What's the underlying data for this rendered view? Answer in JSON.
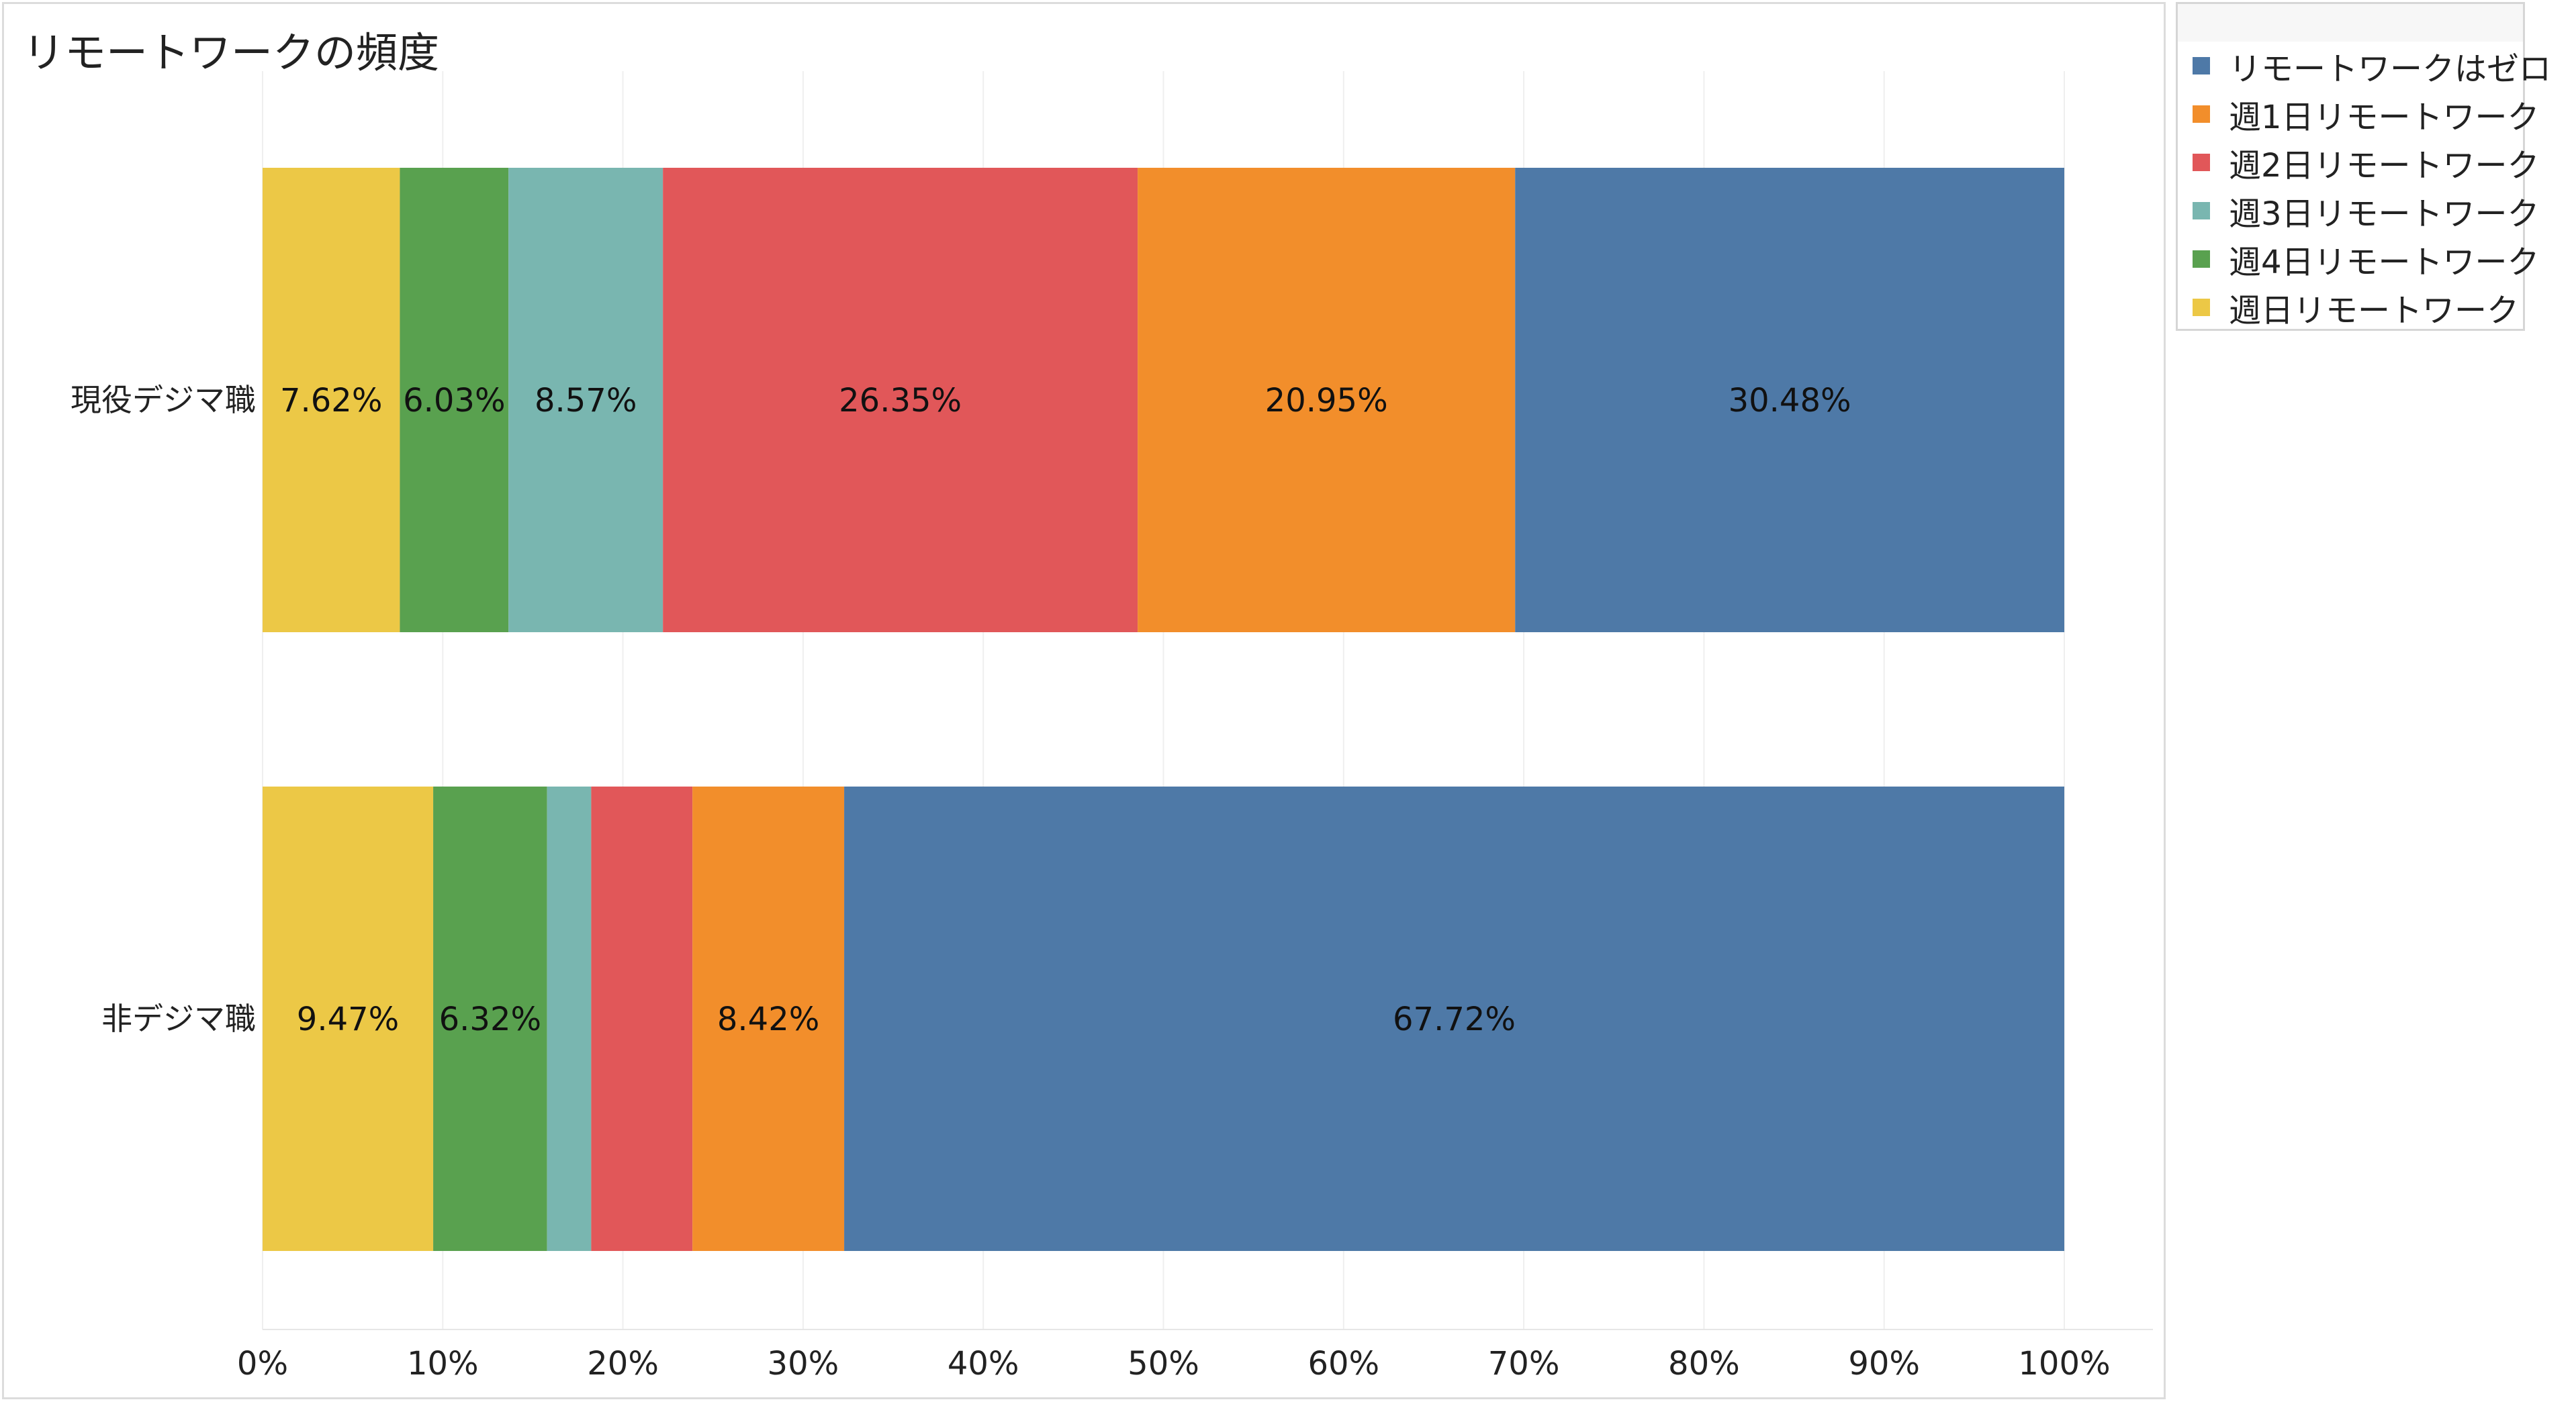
{
  "chart_data": {
    "type": "bar",
    "orientation": "horizontal",
    "stacked": true,
    "title": "リモートワークの頻度",
    "xlabel": "",
    "ylabel": "",
    "xlim": [
      0,
      100
    ],
    "x_ticks": [
      "0%",
      "10%",
      "20%",
      "30%",
      "40%",
      "50%",
      "60%",
      "70%",
      "80%",
      "90%",
      "100%"
    ],
    "grid": true,
    "legend_position": "top-right",
    "categories": [
      "現役デジマ職",
      "非デジマ職"
    ],
    "series": [
      {
        "name": "週日リモートワーク",
        "color": "#ECC846",
        "values": [
          7.62,
          9.47
        ],
        "labels": [
          "7.62%",
          "9.47%"
        ]
      },
      {
        "name": "週4日リモートワーク",
        "color": "#59A14F",
        "values": [
          6.03,
          6.32
        ],
        "labels": [
          "6.03%",
          "6.32%"
        ]
      },
      {
        "name": "週3日リモートワーク",
        "color": "#79B6B0",
        "values": [
          8.57,
          2.45
        ],
        "labels": [
          "8.57%",
          ""
        ]
      },
      {
        "name": "週2日リモートワーク",
        "color": "#E15759",
        "values": [
          26.35,
          5.62
        ],
        "labels": [
          "26.35%",
          ""
        ]
      },
      {
        "name": "週1日リモートワーク",
        "color": "#F28E2B",
        "values": [
          20.95,
          8.42
        ],
        "labels": [
          "20.95%",
          "8.42%"
        ]
      },
      {
        "name": "リモートワークはゼロ",
        "color": "#4E79A7",
        "values": [
          30.48,
          67.72
        ],
        "labels": [
          "30.48%",
          "67.72%"
        ]
      }
    ],
    "legend_order": [
      "リモートワークはゼロ",
      "週1日リモートワーク",
      "週2日リモートワーク",
      "週3日リモートワーク",
      "週4日リモートワーク",
      "週日リモートワーク"
    ]
  }
}
